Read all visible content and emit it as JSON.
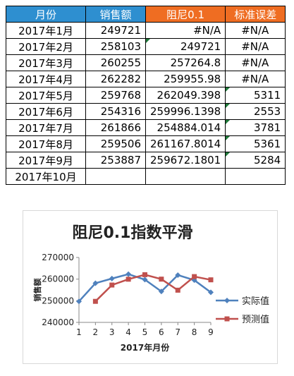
{
  "table": {
    "headers": [
      "月份",
      "销售额",
      "阻尼0.1",
      "标准误差"
    ],
    "rows": [
      [
        "2017年1月",
        "249721",
        "#N/A",
        "#N/A"
      ],
      [
        "2017年2月",
        "258103",
        "249721",
        "#N/A"
      ],
      [
        "2017年3月",
        "260255",
        "257264.8",
        "#N/A"
      ],
      [
        "2017年4月",
        "262282",
        "259955.98",
        "#N/A"
      ],
      [
        "2017年5月",
        "259768",
        "262049.398",
        "5311"
      ],
      [
        "2017年6月",
        "254316",
        "259996.1398",
        "2553"
      ],
      [
        "2017年7月",
        "261866",
        "254884.014",
        "3781"
      ],
      [
        "2017年8月",
        "259506",
        "261167.8014",
        "5361"
      ],
      [
        "2017年9月",
        "253887",
        "259672.1801",
        "5284"
      ],
      [
        "2017年10月",
        "",
        "",
        ""
      ]
    ]
  },
  "colors": {
    "header_blue": "#2e8fd0",
    "header_orange": "#ef6d22",
    "series_actual": "#4f81bd",
    "series_forecast": "#c0504d"
  },
  "chart_data": {
    "type": "line",
    "title": "阻尼0.1指数平滑",
    "xlabel": "2017年月份",
    "ylabel": "销售额",
    "x": [
      1,
      2,
      3,
      4,
      5,
      6,
      7,
      8,
      9
    ],
    "ylim": [
      240000,
      270000
    ],
    "yticks": [
      240000,
      250000,
      260000,
      270000
    ],
    "legend": "right",
    "series": [
      {
        "name": "实际值",
        "values": [
          249721,
          258103,
          260255,
          262282,
          259768,
          254316,
          261866,
          259506,
          253887
        ]
      },
      {
        "name": "预测值",
        "values": [
          null,
          249721,
          257264.8,
          259955.98,
          262049.398,
          259996.1398,
          254884.014,
          261167.8014,
          259672.1801
        ]
      }
    ]
  }
}
